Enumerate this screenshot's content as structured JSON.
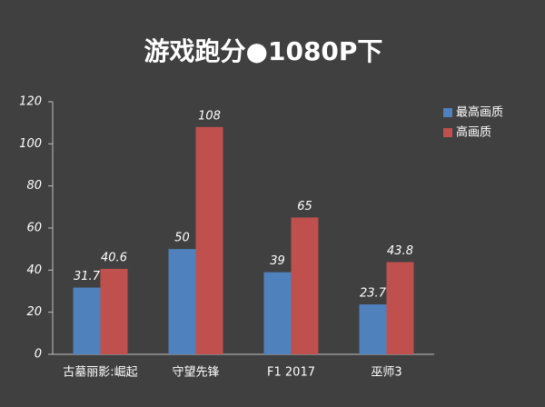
{
  "chart_data": {
    "type": "bar",
    "title": "游戏跑分●1080P下",
    "categories": [
      "古墓丽影:崛起",
      "守望先锋",
      "F1 2017",
      "巫师3"
    ],
    "series": [
      {
        "name": "最高画质",
        "color": "#4f81bd",
        "values": [
          31.7,
          50,
          39,
          23.7
        ]
      },
      {
        "name": "高画质",
        "color": "#c0504d",
        "values": [
          40.6,
          108,
          65,
          43.8
        ]
      }
    ],
    "ylim": [
      0,
      120
    ],
    "yticks": [
      0,
      20,
      40,
      60,
      80,
      100,
      120
    ],
    "grid": false,
    "legend": "top-right"
  }
}
